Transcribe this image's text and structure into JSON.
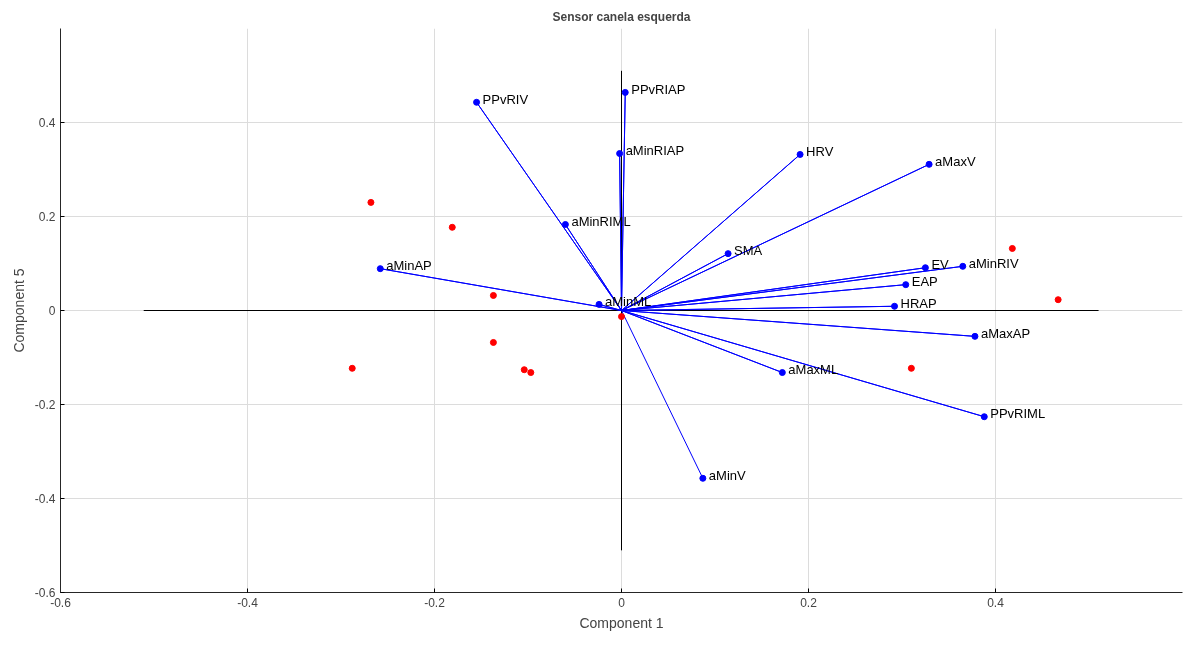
{
  "chart_data": {
    "type": "scatter",
    "title": "Sensor canela esquerda",
    "xlabel": "Component 1",
    "ylabel": "Component 5",
    "xlim": [
      -0.6,
      0.6
    ],
    "ylim": [
      -0.6,
      0.6
    ],
    "xticks": [
      -0.6,
      -0.4,
      -0.2,
      0,
      0.2,
      0.4
    ],
    "yticks": [
      -0.6,
      -0.4,
      -0.2,
      0,
      0.2,
      0.4
    ],
    "grid": true,
    "marker": "circle",
    "series": [
      {
        "type": "line",
        "marker": "none",
        "color": "#000000",
        "x": [
          -0.511,
          0.51,
          0,
          0,
          0
        ],
        "values": [
          0,
          0,
          0,
          -0.51,
          0.51
        ]
      },
      {
        "type": "line",
        "marker": "none",
        "color": "#0000ff",
        "x": [
          0,
          -0.155,
          0,
          0.004,
          0,
          -0.002,
          0,
          0.191,
          0,
          0.329,
          0,
          -0.06,
          0,
          0.114,
          0,
          -0.258,
          0,
          0.325,
          0,
          0.365,
          0,
          0.304,
          0,
          -0.024,
          0,
          0.292,
          0,
          0.378,
          0,
          0.172,
          0,
          0.388,
          0,
          0.087
        ],
        "values": [
          0,
          0.443,
          0,
          0.464,
          0,
          0.334,
          0,
          0.332,
          0,
          0.311,
          0,
          0.183,
          0,
          0.121,
          0,
          0.089,
          0,
          0.091,
          0,
          0.094,
          0,
          0.055,
          0,
          0.013,
          0,
          0.009,
          0,
          -0.055,
          0,
          -0.132,
          0,
          -0.226,
          0,
          -0.357
        ]
      },
      {
        "color": "#0000ff",
        "x": [
          -0.155,
          0.004,
          -0.002,
          0.191,
          0.329,
          -0.06,
          0.114,
          -0.258,
          0.325,
          0.365,
          0.304,
          -0.024,
          0.292,
          0.378,
          0.172,
          0.388,
          0.087
        ],
        "values": [
          0.443,
          0.464,
          0.334,
          0.332,
          0.311,
          0.183,
          0.121,
          0.089,
          0.091,
          0.094,
          0.055,
          0.013,
          0.009,
          -0.055,
          -0.132,
          -0.226,
          -0.357
        ],
        "value_labels": [
          "PPvRIV",
          "PPvRIAP",
          "aMinRIAP",
          "HRV",
          "aMaxV",
          "aMinRIML",
          "SMA",
          "aMinAP",
          "EV",
          "aMinRIV",
          "EAP",
          "aMinML",
          "HRAP",
          "aMaxAP",
          "aMaxML",
          "PPvRIML",
          "aMinV"
        ]
      },
      {
        "color": "#ff0000",
        "x": [
          -0.268,
          -0.181,
          -0.137,
          0.418,
          0.467,
          0.0,
          -0.137,
          -0.288,
          -0.104,
          -0.097,
          0.31
        ],
        "values": [
          0.23,
          0.177,
          0.032,
          0.132,
          0.023,
          -0.013,
          -0.068,
          -0.123,
          -0.126,
          -0.132,
          -0.123
        ]
      }
    ]
  }
}
